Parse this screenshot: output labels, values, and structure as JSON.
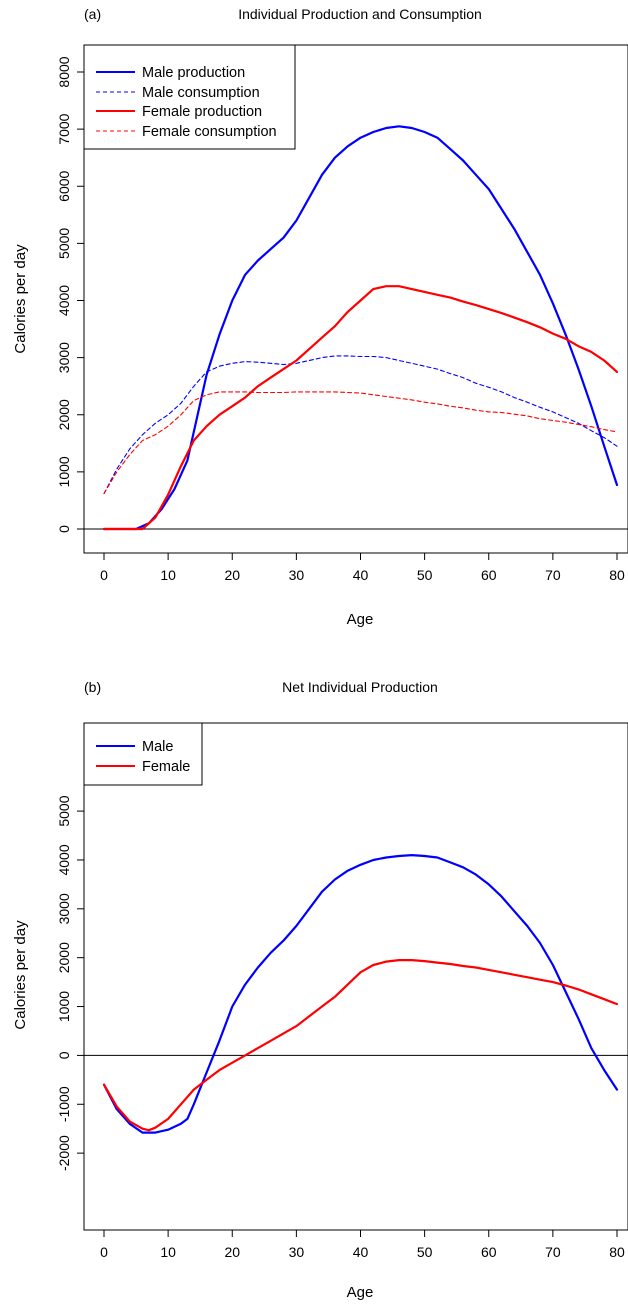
{
  "chart_data": [
    {
      "type": "line",
      "panel_label": "(a)",
      "title": "Individual Production and Consumption",
      "xlabel": "Age",
      "ylabel": "Calories per day",
      "xlim": [
        0,
        80
      ],
      "ylim": [
        0,
        8000
      ],
      "xticks": [
        0,
        10,
        20,
        30,
        40,
        50,
        60,
        70,
        80
      ],
      "yticks": [
        0,
        1000,
        2000,
        3000,
        4000,
        5000,
        6000,
        7000,
        8000
      ],
      "hline": 0,
      "legend_position": "top-left",
      "series": [
        {
          "name": "Male production",
          "color": "#0000ff",
          "style": "solid",
          "x": [
            0,
            5,
            7,
            9,
            11,
            13,
            14,
            16,
            18,
            20,
            22,
            24,
            26,
            28,
            30,
            32,
            34,
            36,
            38,
            40,
            42,
            44,
            46,
            48,
            50,
            52,
            54,
            56,
            58,
            60,
            62,
            64,
            66,
            68,
            70,
            72,
            74,
            76,
            78,
            80
          ],
          "y": [
            0,
            0,
            100,
            350,
            700,
            1200,
            1700,
            2700,
            3400,
            4000,
            4450,
            4700,
            4900,
            5100,
            5400,
            5800,
            6200,
            6500,
            6700,
            6850,
            6950,
            7020,
            7050,
            7020,
            6950,
            6850,
            6650,
            6450,
            6200,
            5950,
            5600,
            5250,
            4850,
            4450,
            3950,
            3400,
            2800,
            2150,
            1450,
            770
          ]
        },
        {
          "name": "Male consumption",
          "color": "#0000ff",
          "style": "dashed",
          "x": [
            0,
            2,
            4,
            6,
            8,
            10,
            12,
            14,
            16,
            18,
            20,
            22,
            24,
            26,
            28,
            30,
            32,
            34,
            36,
            38,
            40,
            42,
            44,
            46,
            48,
            50,
            52,
            54,
            56,
            58,
            60,
            62,
            64,
            66,
            68,
            70,
            72,
            74,
            76,
            78,
            80
          ],
          "y": [
            620,
            1050,
            1400,
            1650,
            1850,
            2000,
            2200,
            2500,
            2750,
            2850,
            2900,
            2930,
            2920,
            2900,
            2880,
            2900,
            2950,
            3000,
            3030,
            3030,
            3020,
            3020,
            3000,
            2950,
            2900,
            2850,
            2800,
            2720,
            2650,
            2550,
            2480,
            2400,
            2300,
            2220,
            2130,
            2050,
            1950,
            1850,
            1720,
            1600,
            1450
          ]
        },
        {
          "name": "Female production",
          "color": "#ff0000",
          "style": "solid",
          "x": [
            0,
            6,
            8,
            10,
            12,
            14,
            16,
            18,
            20,
            22,
            24,
            26,
            28,
            30,
            32,
            34,
            36,
            38,
            40,
            42,
            44,
            46,
            48,
            50,
            52,
            54,
            56,
            58,
            60,
            62,
            64,
            66,
            68,
            70,
            72,
            74,
            76,
            78,
            80
          ],
          "y": [
            0,
            0,
            200,
            600,
            1100,
            1550,
            1800,
            2000,
            2150,
            2300,
            2500,
            2650,
            2800,
            2950,
            3150,
            3350,
            3550,
            3800,
            4000,
            4200,
            4250,
            4250,
            4200,
            4150,
            4100,
            4050,
            3980,
            3920,
            3850,
            3780,
            3700,
            3620,
            3530,
            3420,
            3330,
            3200,
            3100,
            2950,
            2750
          ]
        },
        {
          "name": "Female consumption",
          "color": "#ff0000",
          "style": "dashed",
          "x": [
            0,
            2,
            4,
            6,
            8,
            10,
            12,
            14,
            16,
            18,
            20,
            22,
            24,
            26,
            28,
            30,
            32,
            34,
            36,
            38,
            40,
            42,
            44,
            46,
            48,
            50,
            52,
            54,
            56,
            58,
            60,
            62,
            64,
            66,
            68,
            70,
            72,
            74,
            76,
            78,
            80
          ],
          "y": [
            620,
            1000,
            1300,
            1550,
            1650,
            1800,
            2000,
            2250,
            2350,
            2400,
            2400,
            2400,
            2390,
            2390,
            2390,
            2400,
            2400,
            2400,
            2400,
            2390,
            2380,
            2350,
            2320,
            2290,
            2260,
            2220,
            2190,
            2150,
            2120,
            2080,
            2050,
            2040,
            2010,
            1980,
            1930,
            1900,
            1870,
            1830,
            1790,
            1740,
            1700
          ]
        }
      ]
    },
    {
      "type": "line",
      "panel_label": "(b)",
      "title": "Net Individual Production",
      "xlabel": "Age",
      "ylabel": "Calories per day",
      "xlim": [
        0,
        80
      ],
      "ylim": [
        -3000,
        5800
      ],
      "xticks": [
        0,
        10,
        20,
        30,
        40,
        50,
        60,
        70,
        80
      ],
      "yticks": [
        -2000,
        -1000,
        0,
        1000,
        2000,
        3000,
        4000,
        5000
      ],
      "hline": 0,
      "legend_position": "top-left",
      "series": [
        {
          "name": "Male",
          "color": "#0000ff",
          "style": "solid",
          "x": [
            0,
            2,
            4,
            6,
            8,
            10,
            12,
            13,
            14,
            16,
            18,
            20,
            22,
            24,
            26,
            28,
            30,
            32,
            34,
            36,
            38,
            40,
            42,
            44,
            46,
            48,
            50,
            52,
            54,
            56,
            58,
            60,
            62,
            64,
            66,
            68,
            70,
            72,
            74,
            76,
            78,
            80
          ],
          "y": [
            -600,
            -1100,
            -1400,
            -1580,
            -1580,
            -1520,
            -1400,
            -1300,
            -1000,
            -350,
            300,
            1000,
            1450,
            1800,
            2100,
            2350,
            2650,
            3000,
            3350,
            3600,
            3780,
            3900,
            4000,
            4050,
            4080,
            4100,
            4080,
            4050,
            3950,
            3850,
            3700,
            3500,
            3250,
            2950,
            2650,
            2300,
            1850,
            1300,
            750,
            150,
            -300,
            -700
          ]
        },
        {
          "name": "Female",
          "color": "#ff0000",
          "style": "solid",
          "x": [
            0,
            2,
            4,
            6,
            7,
            8,
            10,
            12,
            14,
            16,
            18,
            20,
            22,
            24,
            26,
            28,
            30,
            32,
            34,
            36,
            38,
            40,
            42,
            44,
            46,
            48,
            50,
            52,
            54,
            56,
            58,
            60,
            62,
            64,
            66,
            68,
            70,
            72,
            74,
            76,
            78,
            80
          ],
          "y": [
            -600,
            -1050,
            -1350,
            -1500,
            -1530,
            -1480,
            -1300,
            -1000,
            -700,
            -500,
            -300,
            -150,
            0,
            150,
            300,
            450,
            600,
            800,
            1000,
            1200,
            1450,
            1700,
            1850,
            1920,
            1950,
            1950,
            1930,
            1900,
            1870,
            1830,
            1800,
            1750,
            1700,
            1650,
            1600,
            1550,
            1500,
            1430,
            1350,
            1250,
            1150,
            1050
          ]
        }
      ]
    }
  ]
}
